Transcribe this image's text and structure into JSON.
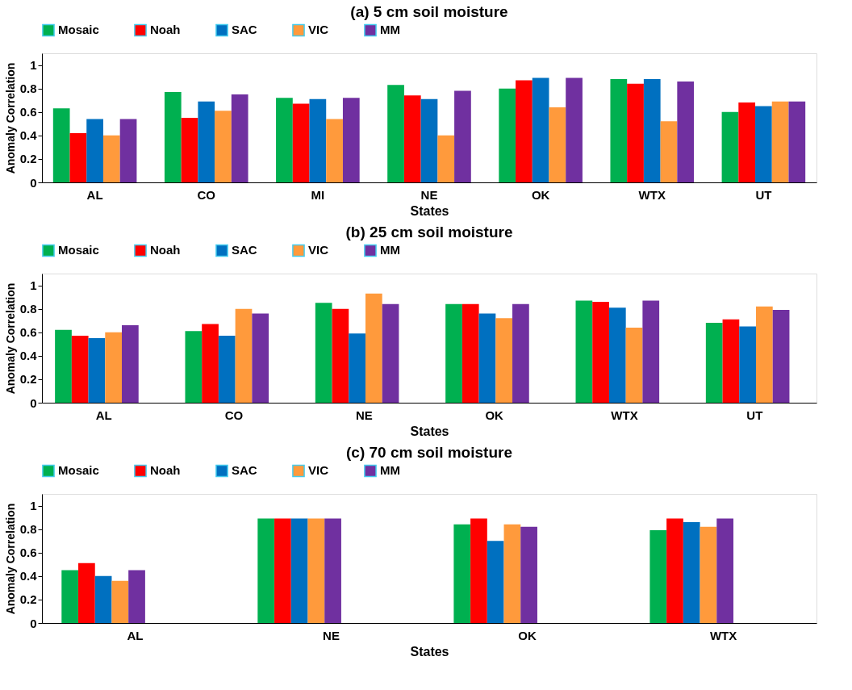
{
  "chart_data": [
    {
      "type": "bar",
      "title": "(a) 5 cm soil moisture",
      "xlabel": "States",
      "ylabel": "Anomaly Correlation",
      "categories": [
        "AL",
        "CO",
        "MI",
        "NE",
        "OK",
        "WTX",
        "UT"
      ],
      "ylim": [
        0,
        1.1
      ],
      "yticks": [
        0,
        0.2,
        0.4,
        0.6,
        0.8,
        1
      ],
      "legend": "top",
      "grid": false,
      "series": [
        {
          "name": "Mosaic",
          "color": "#00b050",
          "values": [
            0.63,
            0.77,
            0.72,
            0.83,
            0.8,
            0.88,
            0.6
          ]
        },
        {
          "name": "Noah",
          "color": "#ff0000",
          "values": [
            0.42,
            0.55,
            0.67,
            0.74,
            0.87,
            0.84,
            0.68
          ]
        },
        {
          "name": "SAC",
          "color": "#0070c0",
          "values": [
            0.54,
            0.69,
            0.71,
            0.71,
            0.89,
            0.88,
            0.65
          ]
        },
        {
          "name": "VIC",
          "color": "#ff9a3c",
          "values": [
            0.4,
            0.61,
            0.54,
            0.4,
            0.64,
            0.52,
            0.69
          ]
        },
        {
          "name": "MM",
          "color": "#7030a0",
          "values": [
            0.54,
            0.75,
            0.72,
            0.78,
            0.89,
            0.86,
            0.69
          ]
        }
      ]
    },
    {
      "type": "bar",
      "title": "(b) 25 cm soil moisture",
      "xlabel": "States",
      "ylabel": "Anomaly Correlation",
      "categories": [
        "AL",
        "CO",
        "NE",
        "OK",
        "WTX",
        "UT"
      ],
      "ylim": [
        0,
        1.1
      ],
      "yticks": [
        0,
        0.2,
        0.4,
        0.6,
        0.8,
        1
      ],
      "legend": "top",
      "grid": false,
      "series": [
        {
          "name": "Mosaic",
          "color": "#00b050",
          "values": [
            0.62,
            0.61,
            0.85,
            0.84,
            0.87,
            0.68
          ]
        },
        {
          "name": "Noah",
          "color": "#ff0000",
          "values": [
            0.57,
            0.67,
            0.8,
            0.84,
            0.86,
            0.71
          ]
        },
        {
          "name": "SAC",
          "color": "#0070c0",
          "values": [
            0.55,
            0.57,
            0.59,
            0.76,
            0.81,
            0.65
          ]
        },
        {
          "name": "VIC",
          "color": "#ff9a3c",
          "values": [
            0.6,
            0.8,
            0.93,
            0.72,
            0.64,
            0.82
          ]
        },
        {
          "name": "MM",
          "color": "#7030a0",
          "values": [
            0.66,
            0.76,
            0.84,
            0.84,
            0.87,
            0.79
          ]
        }
      ]
    },
    {
      "type": "bar",
      "title": "(c) 70 cm soil moisture",
      "xlabel": "States",
      "ylabel": "Anomaly Correlation",
      "categories": [
        "AL",
        "NE",
        "OK",
        "WTX"
      ],
      "ylim": [
        0,
        1.1
      ],
      "yticks": [
        0,
        0.2,
        0.4,
        0.6,
        0.8,
        1
      ],
      "legend": "top",
      "grid": false,
      "series": [
        {
          "name": "Mosaic",
          "color": "#00b050",
          "values": [
            0.45,
            0.89,
            0.84,
            0.79
          ]
        },
        {
          "name": "Noah",
          "color": "#ff0000",
          "values": [
            0.51,
            0.89,
            0.89,
            0.89
          ]
        },
        {
          "name": "SAC",
          "color": "#0070c0",
          "values": [
            0.4,
            0.89,
            0.7,
            0.86
          ]
        },
        {
          "name": "VIC",
          "color": "#ff9a3c",
          "values": [
            0.36,
            0.89,
            0.84,
            0.82
          ]
        },
        {
          "name": "MM",
          "color": "#7030a0",
          "values": [
            0.45,
            0.89,
            0.82,
            0.89
          ]
        }
      ]
    }
  ]
}
